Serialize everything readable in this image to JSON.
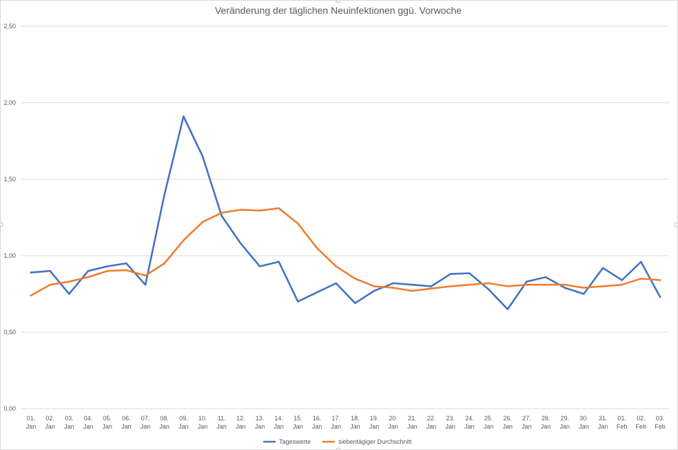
{
  "chart_data": {
    "type": "line",
    "title": "Veränderung der täglichen Neuinfektionen ggü. Vorwoche",
    "xlabel": "",
    "ylabel": "",
    "ylim": [
      0,
      2.5
    ],
    "yticks": [
      "0,00",
      "0,50",
      "1,00",
      "1,50",
      "2,00",
      "2,50"
    ],
    "ytick_values": [
      0,
      0.5,
      1.0,
      1.5,
      2.0,
      2.5
    ],
    "grid": true,
    "legend_position": "bottom",
    "categories": [
      [
        "01.",
        "Jan"
      ],
      [
        "02.",
        "Jan"
      ],
      [
        "03.",
        "Jan"
      ],
      [
        "04.",
        "Jan"
      ],
      [
        "05.",
        "Jan"
      ],
      [
        "06.",
        "Jan"
      ],
      [
        "07.",
        "Jan"
      ],
      [
        "08.",
        "Jan"
      ],
      [
        "09.",
        "Jan"
      ],
      [
        "10.",
        "Jan"
      ],
      [
        "11.",
        "Jan"
      ],
      [
        "12.",
        "Jan"
      ],
      [
        "13.",
        "Jan"
      ],
      [
        "14.",
        "Jan"
      ],
      [
        "15.",
        "Jan"
      ],
      [
        "16.",
        "Jan"
      ],
      [
        "17.",
        "Jan"
      ],
      [
        "18.",
        "Jan"
      ],
      [
        "19.",
        "Jan"
      ],
      [
        "20.",
        "Jan"
      ],
      [
        "21.",
        "Jan"
      ],
      [
        "22.",
        "Jan"
      ],
      [
        "23.",
        "Jan"
      ],
      [
        "24.",
        "Jan"
      ],
      [
        "25.",
        "Jan"
      ],
      [
        "26.",
        "Jan"
      ],
      [
        "27.",
        "Jan"
      ],
      [
        "28.",
        "Jan"
      ],
      [
        "29.",
        "Jan"
      ],
      [
        "30.",
        "Jan"
      ],
      [
        "31.",
        "Jan"
      ],
      [
        "01.",
        "Feb"
      ],
      [
        "02.",
        "Feb"
      ],
      [
        "03.",
        "Feb"
      ]
    ],
    "series": [
      {
        "name": "Tageswerte",
        "color": "#4472c4",
        "values": [
          0.89,
          0.9,
          0.75,
          0.9,
          0.93,
          0.95,
          0.81,
          1.4,
          1.91,
          1.65,
          1.26,
          1.08,
          0.93,
          0.96,
          0.7,
          0.76,
          0.82,
          0.69,
          0.77,
          0.82,
          0.81,
          0.8,
          0.88,
          0.885,
          0.78,
          0.65,
          0.83,
          0.86,
          0.79,
          0.75,
          0.92,
          0.84,
          0.96,
          0.73
        ]
      },
      {
        "name": "siebentägiger Durchschnitt",
        "color": "#ed7d31",
        "values": [
          0.74,
          0.81,
          0.83,
          0.86,
          0.9,
          0.905,
          0.87,
          0.95,
          1.1,
          1.22,
          1.28,
          1.3,
          1.295,
          1.31,
          1.21,
          1.05,
          0.93,
          0.85,
          0.8,
          0.79,
          0.77,
          0.785,
          0.8,
          0.81,
          0.82,
          0.8,
          0.81,
          0.81,
          0.81,
          0.79,
          0.8,
          0.81,
          0.85,
          0.84
        ]
      }
    ]
  }
}
